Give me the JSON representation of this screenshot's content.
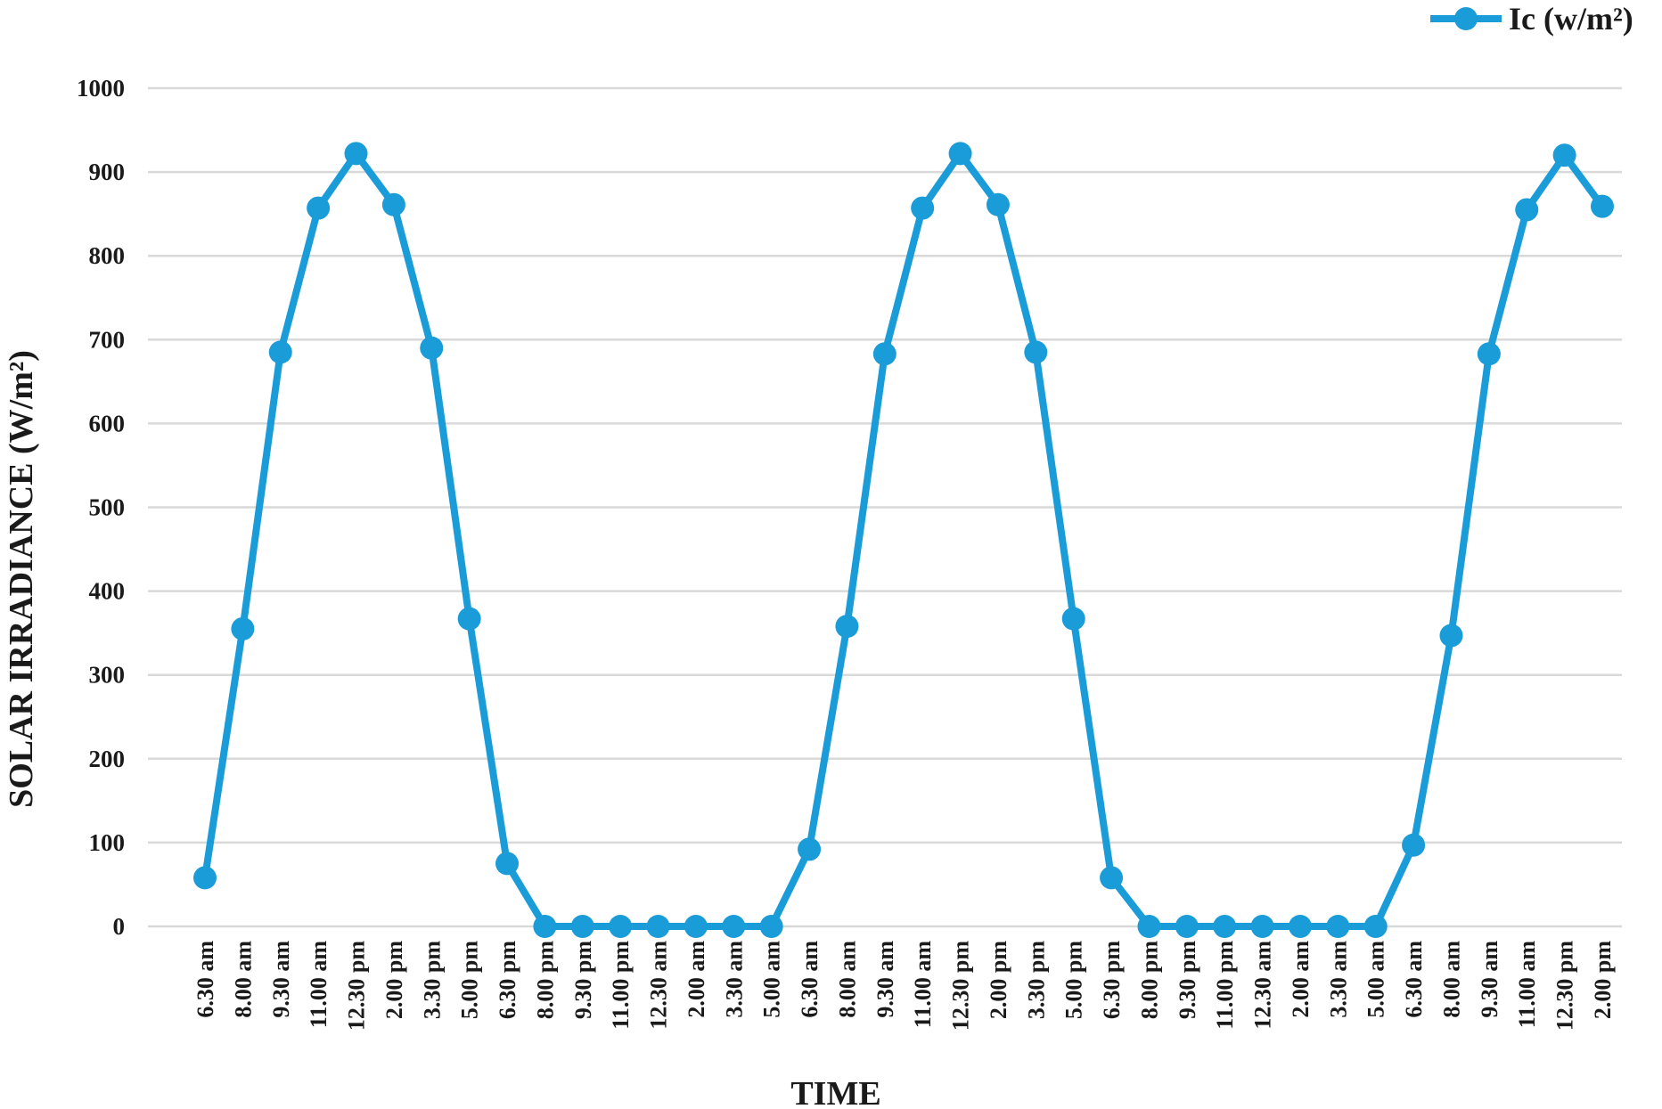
{
  "chart_data": {
    "type": "line",
    "x_label": "TIME",
    "y_label": "SOLAR IRRADIANCE (W/m²)",
    "categories": [
      "6.30 am",
      "8.00 am",
      "9.30 am",
      "11.00 am",
      "12.30 pm",
      "2.00 pm",
      "3.30 pm",
      "5.00 pm",
      "6.30 pm",
      "8.00 pm",
      "9.30 pm",
      "11.00 pm",
      "12.30 am",
      "2.00 am",
      "3.30 am",
      "5.00 am",
      "6.30 am",
      "8.00 am",
      "9.30 am",
      "11.00 am",
      "12.30 pm",
      "2.00 pm",
      "3.30 pm",
      "5.00 pm",
      "6.30 pm",
      "8.00 pm",
      "9.30 pm",
      "11.00 pm",
      "12.30 am",
      "2.00 am",
      "3.30 am",
      "5.00 am",
      "6.30 am",
      "8.00 am",
      "9.30 am",
      "11.00 am",
      "12.30 pm",
      "2.00 pm"
    ],
    "series": [
      {
        "name": "Ic (w/m²)",
        "color": "#1a9cd8",
        "values": [
          58,
          355,
          685,
          857,
          922,
          861,
          690,
          367,
          75,
          0,
          0,
          0,
          0,
          0,
          0,
          0,
          92,
          358,
          683,
          857,
          922,
          861,
          685,
          367,
          58,
          0,
          0,
          0,
          0,
          0,
          0,
          0,
          97,
          347,
          683,
          855,
          920,
          859
        ]
      }
    ],
    "ylim": [
      0,
      1000
    ],
    "yticks": [
      0,
      100,
      200,
      300,
      400,
      500,
      600,
      700,
      800,
      900,
      1000
    ],
    "grid": true,
    "legend": "top-right"
  }
}
